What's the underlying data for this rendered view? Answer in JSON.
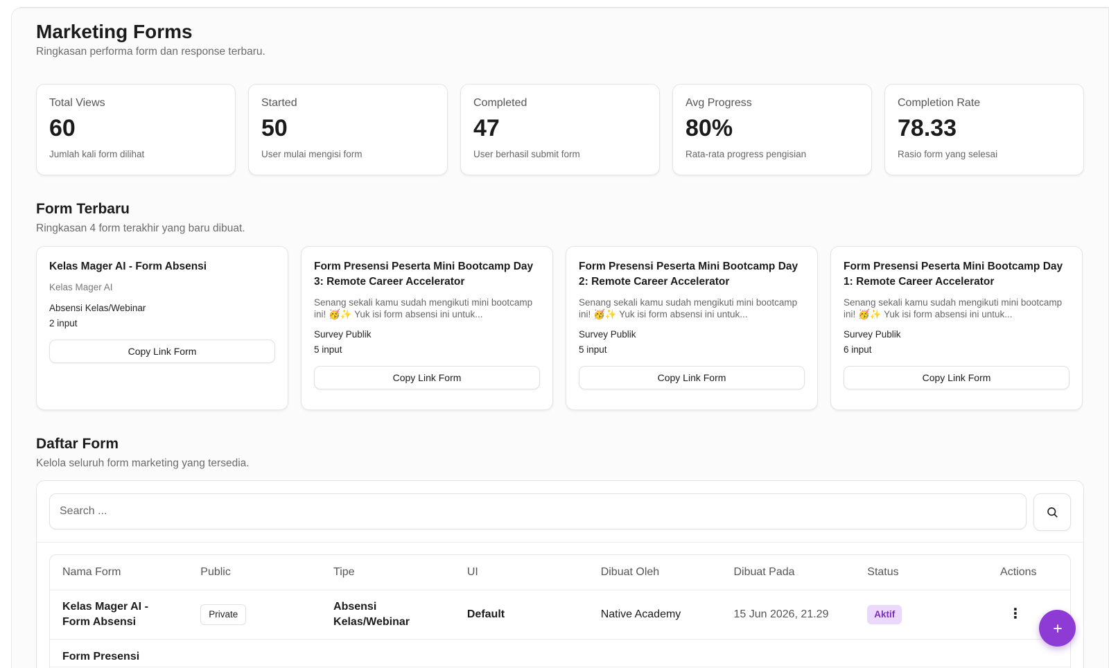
{
  "header": {
    "title": "Marketing Forms",
    "subtitle": "Ringkasan performa form dan response terbaru."
  },
  "stats": [
    {
      "label": "Total Views",
      "value": "60",
      "desc": "Jumlah kali form dilihat"
    },
    {
      "label": "Started",
      "value": "50",
      "desc": "User mulai mengisi form"
    },
    {
      "label": "Completed",
      "value": "47",
      "desc": "User berhasil submit form"
    },
    {
      "label": "Avg Progress",
      "value": "80%",
      "desc": "Rata-rata progress pengisian"
    },
    {
      "label": "Completion Rate",
      "value": "78.33",
      "desc": "Rasio form yang selesai"
    }
  ],
  "recent": {
    "title": "Form Terbaru",
    "subtitle": "Ringkasan 4 form terakhir yang baru dibuat.",
    "button_label": "Copy Link Form",
    "cards": [
      {
        "title": "Kelas Mager AI - Form Absensi",
        "subtitle": "Kelas Mager AI",
        "type": "Absensi Kelas/Webinar",
        "count": "2 input"
      },
      {
        "title": "Form Presensi Peserta Mini Bootcamp Day 3: Remote Career Accelerator",
        "desc": "Senang sekali kamu sudah mengikuti mini bootcamp ini! 🥳✨ Yuk isi form absensi ini untuk...",
        "type": "Survey Publik",
        "count": "5 input"
      },
      {
        "title": "Form Presensi Peserta Mini Bootcamp Day 2: Remote Career Accelerator",
        "desc": "Senang sekali kamu sudah mengikuti mini bootcamp ini! 🥳✨ Yuk isi form absensi ini untuk...",
        "type": "Survey Publik",
        "count": "5 input"
      },
      {
        "title": "Form Presensi Peserta Mini Bootcamp Day 1: Remote Career Accelerator",
        "desc": "Senang sekali kamu sudah mengikuti mini bootcamp ini! 🥳✨ Yuk isi form absensi ini untuk...",
        "type": "Survey Publik",
        "count": "6 input"
      }
    ]
  },
  "list": {
    "title": "Daftar Form",
    "subtitle": "Kelola seluruh form marketing yang tersedia.",
    "search_placeholder": "Search ...",
    "columns": [
      "Nama Form",
      "Public",
      "Tipe",
      "UI",
      "Dibuat Oleh",
      "Dibuat Pada",
      "Status",
      "Actions"
    ],
    "rows": [
      {
        "name": "Kelas Mager AI - Form Absensi",
        "public": "Private",
        "type": "Absensi Kelas/Webinar",
        "ui": "Default",
        "created_by": "Native Academy",
        "created_at": "15 Jun 2026, 21.29",
        "status": "Aktif",
        "actions": "⋮"
      },
      {
        "name": "Form Presensi"
      }
    ]
  },
  "icons": {
    "search": "search-icon",
    "more": "more-vertical-icon",
    "add": "plus-icon"
  },
  "colors": {
    "accent": "#8e3bd6",
    "status_bg": "#ead9fb",
    "status_text": "#7b2cbf"
  }
}
